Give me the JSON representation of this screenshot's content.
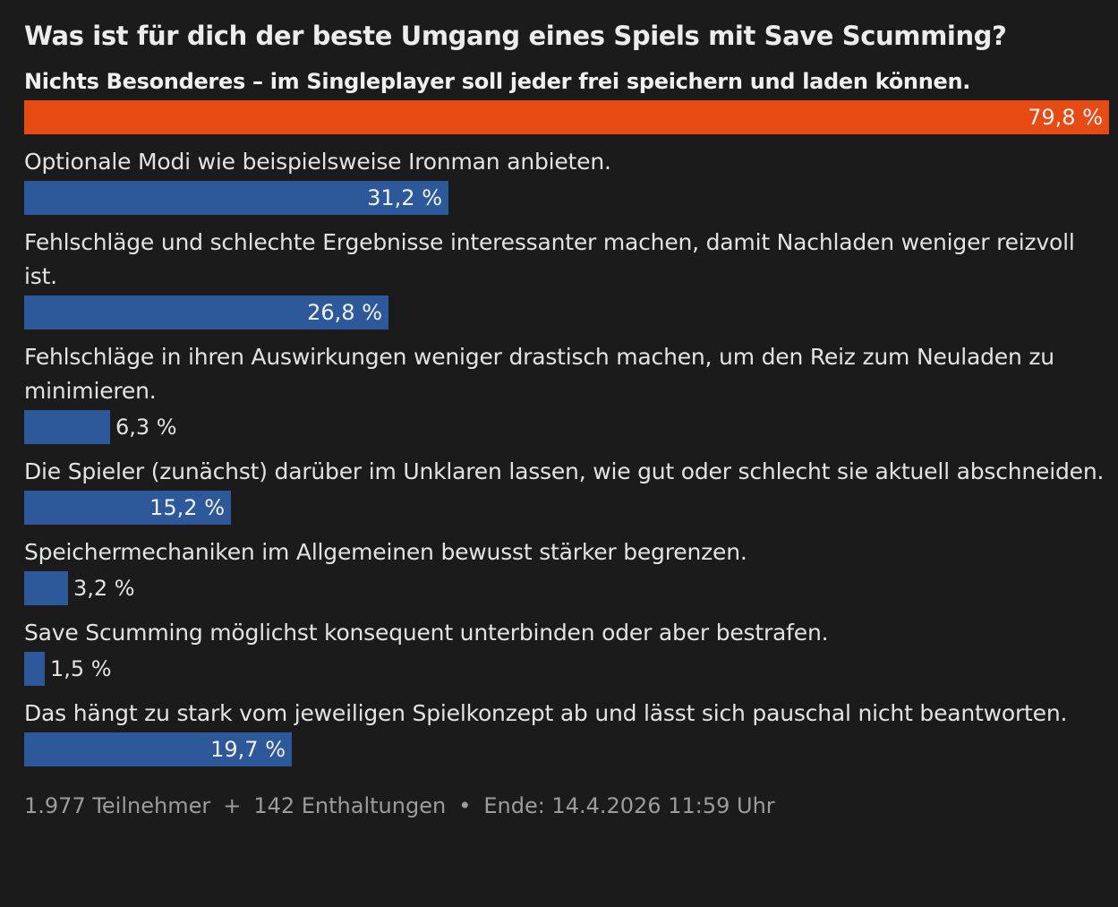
{
  "chart_data": {
    "type": "bar",
    "orientation": "horizontal",
    "title": "Was ist für dich der beste Umgang eines Spiels mit Save Scumming?",
    "categories": [
      "Nichts Besonderes – im Singleplayer soll jeder frei speichern und laden können.",
      "Optionale Modi wie beispielsweise Ironman anbieten.",
      "Fehlschläge und schlechte Ergebnisse interessanter machen, damit Nachladen weniger reizvoll ist.",
      "Fehlschläge in ihren Auswirkungen weniger drastisch machen, um den Reiz zum Neuladen zu minimieren.",
      "Die Spieler (zunächst) darüber im Unklaren lassen, wie gut oder schlecht sie aktuell abschneiden.",
      "Speichermechaniken im Allgemeinen bewusst stärker begrenzen.",
      "Save Scumming möglichst konsequent unterbinden oder aber bestrafen.",
      "Das hängt zu stark vom jeweiligen Spielkonzept ab und lässt sich pauschal nicht beantworten."
    ],
    "values": [
      79.8,
      31.2,
      26.8,
      6.3,
      15.2,
      3.2,
      1.5,
      19.7
    ],
    "value_labels": [
      "79,8 %",
      "31,2 %",
      "26,8 %",
      "6,3 %",
      "15,2 %",
      "3,2 %",
      "1,5 %",
      "19,7 %"
    ],
    "xlim": [
      0,
      79.8
    ],
    "highlight_index": 0,
    "colors": {
      "highlight": "#e64b14",
      "default": "#2d5899",
      "background": "#1b1b1b"
    },
    "grid": false,
    "legend": "none"
  },
  "footer": {
    "participants": "1.977 Teilnehmer",
    "plus": "+",
    "abstentions": "142 Enthaltungen",
    "bullet": "•",
    "end": "Ende: 14.4.2026 11:59 Uhr"
  }
}
